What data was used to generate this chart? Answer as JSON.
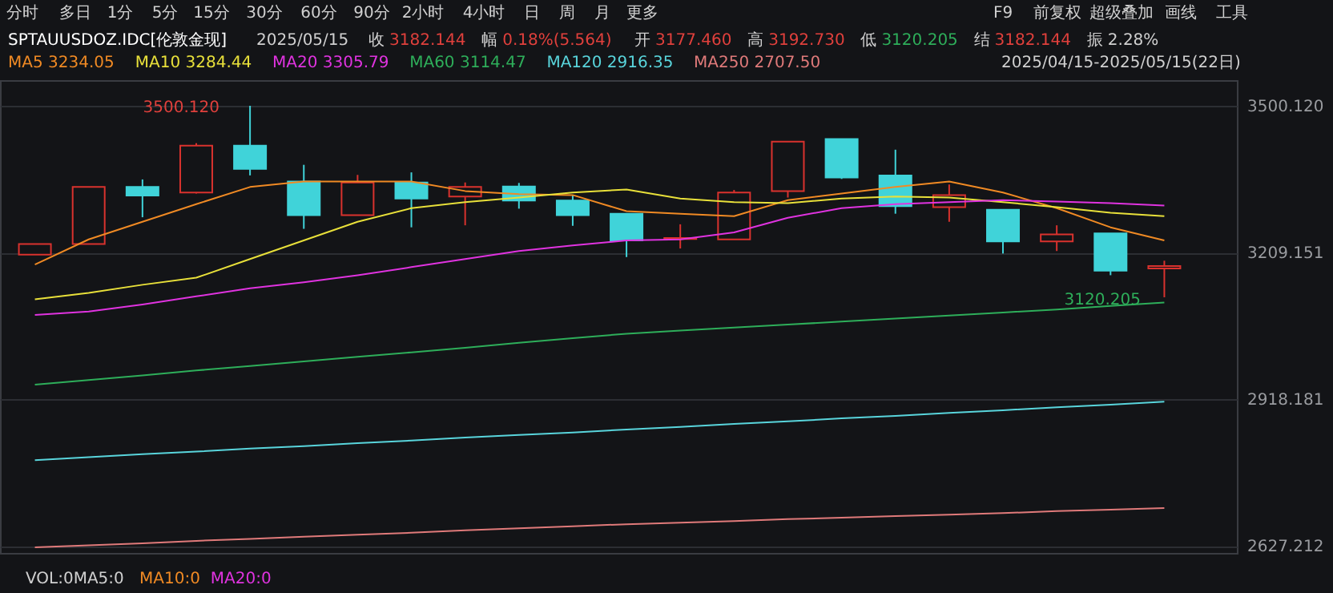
{
  "chart_data": {
    "type": "candlestick",
    "title": "SPTAUUSDOZ.IDC[伦敦金现]",
    "categories": [
      null,
      null,
      null,
      null,
      null,
      null,
      null,
      null,
      null,
      null,
      null,
      null,
      null,
      null,
      null,
      null,
      null,
      null,
      null,
      null,
      null,
      null
    ],
    "ohlc": [
      [
        3205,
        3226,
        3205,
        3226
      ],
      [
        3226,
        3339,
        3226,
        3339
      ],
      [
        3339,
        3354,
        3279,
        3322
      ],
      [
        3328,
        3426,
        3326,
        3421
      ],
      [
        3421,
        3500.12,
        3362,
        3375
      ],
      [
        3350,
        3383,
        3256,
        3283
      ],
      [
        3283,
        3363,
        3283,
        3348
      ],
      [
        3348,
        3368,
        3259,
        3316
      ],
      [
        3320,
        3348,
        3263,
        3339
      ],
      [
        3340,
        3347,
        3296,
        3312
      ],
      [
        3312,
        3323,
        3262,
        3283
      ],
      [
        3286,
        3286,
        3200,
        3233
      ],
      [
        3236,
        3265,
        3217,
        3238
      ],
      [
        3235,
        3333,
        3235,
        3328
      ],
      [
        3331,
        3429,
        3318,
        3429
      ],
      [
        3434,
        3434,
        3355,
        3358
      ],
      [
        3362,
        3413,
        3286,
        3301
      ],
      [
        3299,
        3344,
        3270,
        3323
      ],
      [
        3294,
        3294,
        3207,
        3231
      ],
      [
        3231,
        3263,
        3212,
        3245
      ],
      [
        3247,
        3247,
        3164,
        3173
      ],
      [
        3177.46,
        3192.73,
        3120.205,
        3182.144
      ]
    ],
    "colors": [
      "#d9322e",
      "#d9322e",
      "#40d3d9",
      "#d9322e",
      "#40d3d9",
      "#40d3d9",
      "#d9322e",
      "#40d3d9",
      "#d9322e",
      "#40d3d9",
      "#40d3d9",
      "#40d3d9",
      "#d9322e",
      "#d9322e",
      "#d9322e",
      "#40d3d9",
      "#40d3d9",
      "#d9322e",
      "#40d3d9",
      "#d9322e",
      "#40d3d9",
      "#d9322e"
    ],
    "series": [
      {
        "name": "MA5 3234.05",
        "type": "line",
        "color": "#f08a24",
        "values": [
          3185,
          3235,
          3270,
          3305,
          3339,
          3350,
          3350,
          3350,
          3331,
          3325,
          3323,
          3291,
          3286,
          3281,
          3313,
          3326,
          3339,
          3350,
          3328,
          3297,
          3259,
          3233
        ]
      },
      {
        "name": "MA10 3284.44",
        "type": "line",
        "color": "#e8e03a",
        "values": [
          3116,
          3129,
          3145,
          3159,
          3196,
          3233,
          3270,
          3297,
          3309,
          3318,
          3328,
          3334,
          3316,
          3309,
          3307,
          3316,
          3320,
          3318,
          3309,
          3299,
          3288,
          3281
        ]
      },
      {
        "name": "MA20 3305.79",
        "type": "line",
        "color": "#e033e0",
        "values": [
          3085,
          3092,
          3106,
          3122,
          3138,
          3150,
          3164,
          3180,
          3196,
          3212,
          3223,
          3233,
          3235,
          3249,
          3278,
          3297,
          3305,
          3309,
          3313,
          3310,
          3307,
          3302
        ]
      },
      {
        "name": "MA60 3114.47",
        "type": "line",
        "color": "#2eae5a",
        "values": [
          2947,
          2956,
          2965,
          2975,
          2984,
          2993,
          3002,
          3011,
          3020,
          3030,
          3039,
          3048,
          3054,
          3060,
          3066,
          3072,
          3078,
          3084,
          3090,
          3096,
          3103,
          3110
        ]
      },
      {
        "name": "MA120 2916.35",
        "type": "line",
        "color": "#59d5dc",
        "values": [
          2797,
          2803,
          2809,
          2814,
          2820,
          2825,
          2831,
          2836,
          2842,
          2847,
          2852,
          2858,
          2863,
          2869,
          2874,
          2880,
          2885,
          2891,
          2896,
          2902,
          2907,
          2913
        ]
      },
      {
        "name": "MA250 2707.50",
        "type": "line",
        "color": "#e07a7a",
        "values": [
          2624,
          2628,
          2632,
          2637,
          2641,
          2645,
          2649,
          2653,
          2658,
          2662,
          2666,
          2670,
          2673,
          2676,
          2680,
          2683,
          2686,
          2689,
          2692,
          2696,
          2699,
          2702
        ]
      }
    ],
    "ylim": [
      2613,
      3551
    ],
    "yticks": [
      {
        "value": 3500.12,
        "label": "3500.120"
      },
      3209.151,
      2918.181,
      2627.212
    ],
    "grid": "y",
    "legend": "top left",
    "annotations": [
      "分时",
      "多日",
      "1分",
      "5分",
      "15分",
      "30分",
      "60分",
      "90分",
      "2小时",
      "4小时",
      "日",
      "周",
      "月",
      "更多",
      "F9",
      "前复权",
      "超级叠加",
      "画线",
      "工具",
      "2025/05/15",
      "收",
      "3182.144",
      "幅",
      "0.18%(5.564)",
      "开",
      "3177.460",
      "高",
      "3192.730",
      "低",
      "3120.205",
      "结",
      "3182.144",
      "振",
      "2.28%",
      "2025/04/15-2025/05/15(22日)",
      "VOL:0MA5:0",
      "MA10:0",
      "MA20:0",
      "3500.120",
      "3120.205"
    ]
  }
}
